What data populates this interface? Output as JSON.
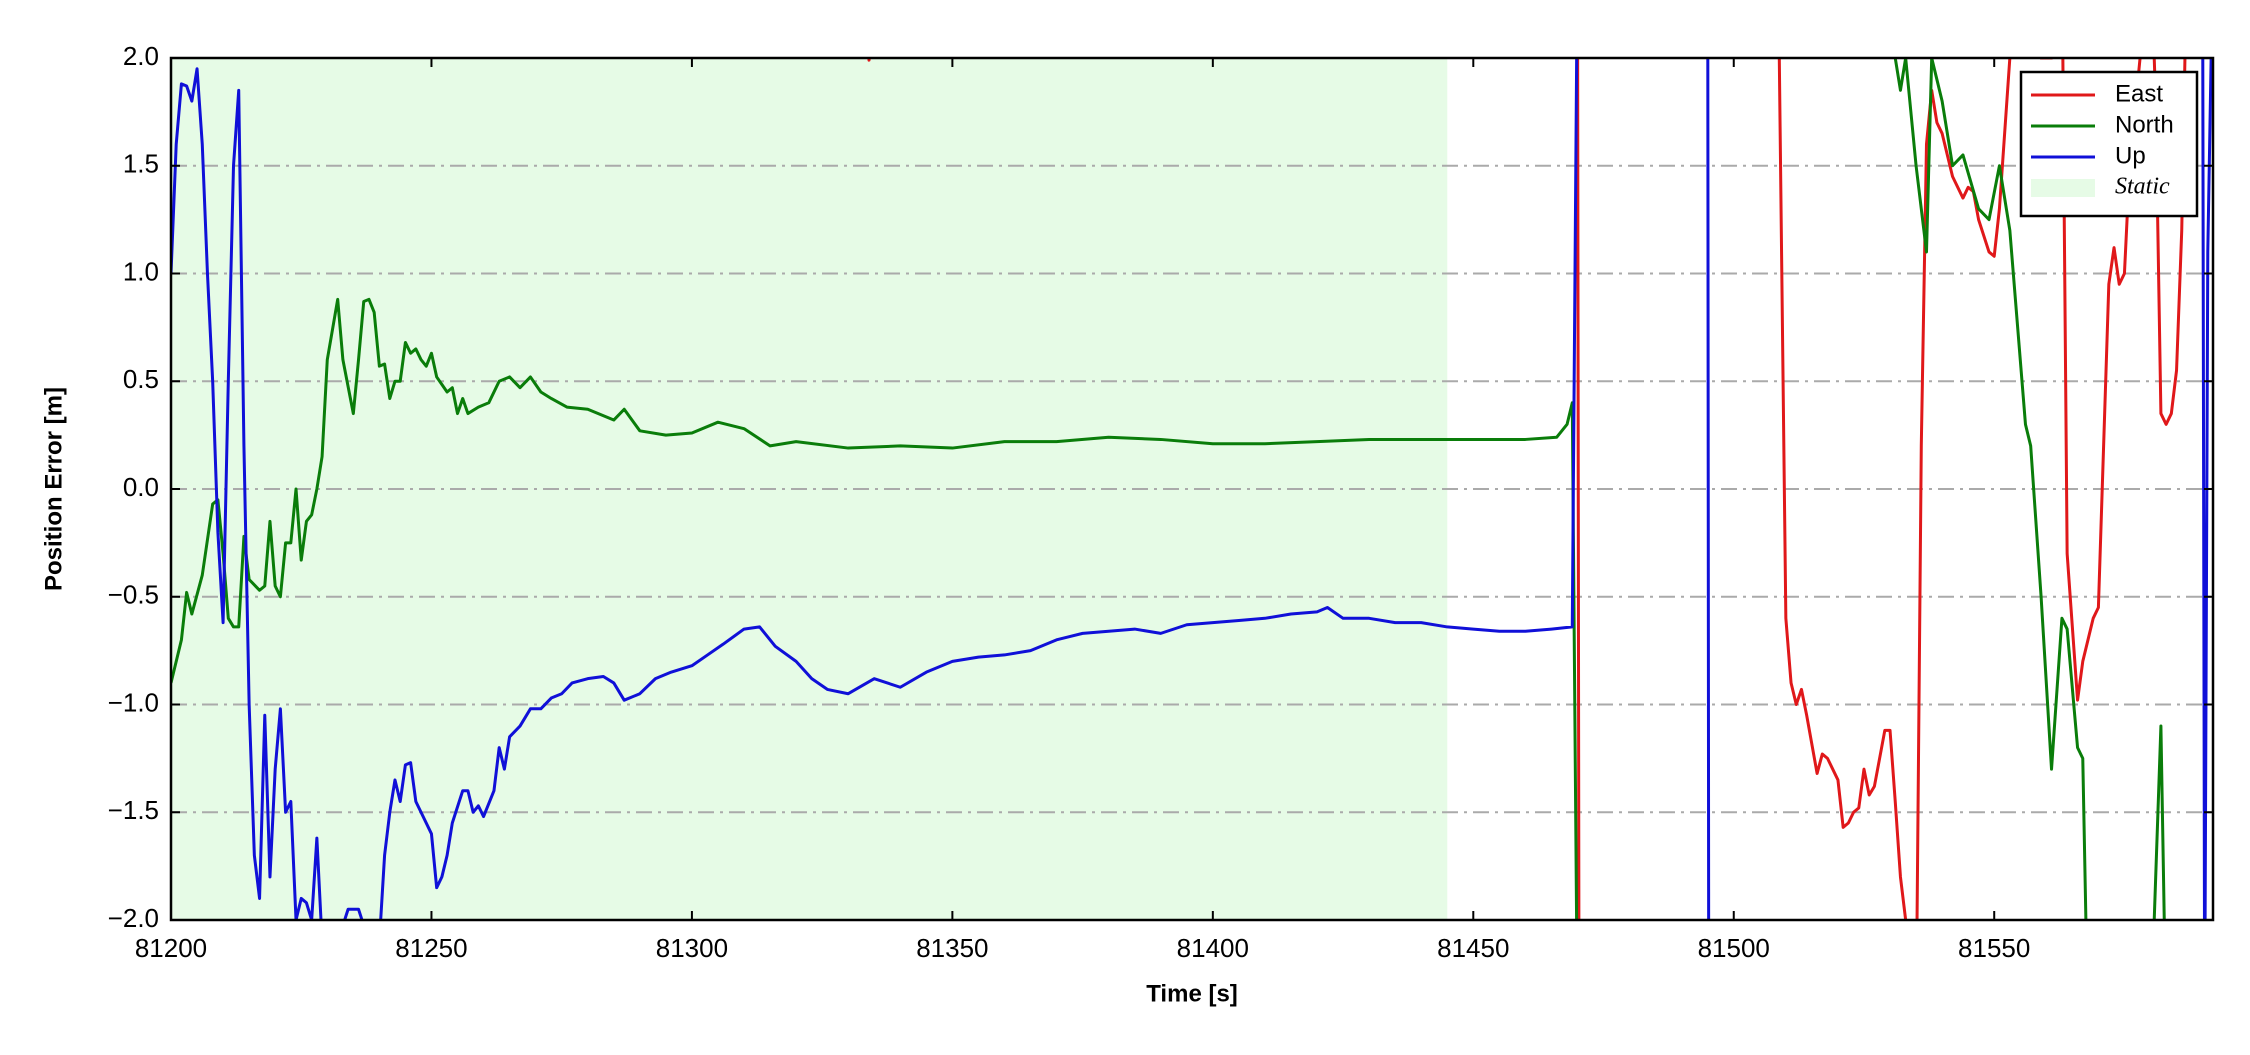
{
  "chart_data": {
    "type": "line",
    "xlabel": "Time [s]",
    "ylabel": "Position Error [m]",
    "xlim": [
      81200,
      81592
    ],
    "ylim": [
      -2,
      2
    ],
    "xticks": [
      81200,
      81250,
      81300,
      81350,
      81400,
      81450,
      81500,
      81550
    ],
    "yticks": [
      {
        "value": -2,
        "label": "−2.0"
      },
      {
        "value": -1.5,
        "label": "−1.5"
      },
      {
        "value": -1,
        "label": "−1.0"
      },
      {
        "value": -0.5,
        "label": "−0.5"
      },
      {
        "value": 0,
        "label": "0.0"
      },
      0.5,
      {
        "value": 1,
        "label": "1.0"
      },
      1.5,
      {
        "value": 2,
        "label": "2.0"
      }
    ],
    "grid": true,
    "legend": "upper right",
    "spans": [
      {
        "name": "Static",
        "color": "#e6fbe6",
        "x": [
          81200,
          81445
        ]
      }
    ],
    "series": [
      {
        "name": "East",
        "color": "#e0181a",
        "x": [
          81333.5,
          81334,
          81334.5,
          81400,
          81470,
          81470.3,
          81490,
          81508.5,
          81510,
          81511,
          81512,
          81513,
          81514,
          81516,
          81517,
          81518,
          81520,
          81521,
          81522,
          81523,
          81524,
          81525,
          81526,
          81527,
          81528,
          81529,
          81530,
          81531,
          81532,
          81533,
          81534,
          81534.5,
          81535,
          81536,
          81537,
          81538,
          81539,
          81540,
          81541,
          81542,
          81544,
          81545,
          81546,
          81547,
          81549,
          81550,
          81551,
          81553,
          81555,
          81557,
          81558,
          81559,
          81561,
          81562,
          81562.5,
          81563,
          81564,
          81566,
          81567,
          81568,
          81569,
          81570,
          81572,
          81573,
          81574,
          81575,
          81576,
          81578,
          81579,
          81579.5,
          81580,
          81581,
          81582,
          81583,
          81584,
          81585,
          81586,
          81587
        ],
        "values": [
          2.1,
          1.99,
          2.1,
          null,
          2.5,
          -2.5,
          null,
          2.5,
          -0.6,
          -0.9,
          -1.0,
          -0.93,
          -1.05,
          -1.32,
          -1.23,
          -1.25,
          -1.35,
          -1.57,
          -1.55,
          -1.5,
          -1.48,
          -1.3,
          -1.42,
          -1.38,
          -1.25,
          -1.12,
          -1.12,
          -1.45,
          -1.8,
          -2.0,
          -2.5,
          null,
          -2.5,
          0.2,
          1.6,
          1.85,
          1.7,
          1.65,
          1.55,
          1.45,
          1.35,
          1.4,
          1.38,
          1.25,
          1.1,
          1.08,
          1.3,
          2.0,
          2.5,
          null,
          2.5,
          2.0,
          2.0,
          2.5,
          null,
          2.5,
          -0.3,
          -0.98,
          -0.8,
          -0.7,
          -0.6,
          -0.55,
          0.95,
          1.12,
          0.95,
          1.0,
          1.5,
          2.0,
          2.5,
          null,
          2.5,
          1.8,
          0.35,
          0.3,
          0.35,
          0.55,
          1.2,
          2.5
        ]
      },
      {
        "name": "North",
        "color": "#0a7d0a",
        "x": [
          81200,
          81202,
          81203,
          81204,
          81206,
          81208,
          81209,
          81210,
          81211,
          81212,
          81213,
          81214,
          81215,
          81217,
          81218,
          81219,
          81220,
          81221,
          81222,
          81223,
          81224,
          81225,
          81226,
          81227,
          81228,
          81229,
          81230,
          81232,
          81233,
          81235,
          81236,
          81237,
          81238,
          81239,
          81240,
          81241,
          81242,
          81243,
          81244,
          81245,
          81246,
          81247,
          81248,
          81249,
          81250,
          81251,
          81253,
          81254,
          81255,
          81256,
          81257,
          81259,
          81261,
          81263,
          81265,
          81267,
          81269,
          81271,
          81273,
          81276,
          81280,
          81285,
          81287,
          81290,
          81295,
          81300,
          81305,
          81310,
          81315,
          81320,
          81330,
          81340,
          81350,
          81360,
          81370,
          81380,
          81390,
          81400,
          81410,
          81420,
          81430,
          81440,
          81450,
          81460,
          81466,
          81468,
          81469,
          81470,
          81500,
          81531,
          81532,
          81533,
          81535,
          81537,
          81538,
          81540,
          81542,
          81544,
          81547,
          81549,
          81551,
          81553,
          81556,
          81557,
          81559,
          81561,
          81563,
          81564,
          81566,
          81567,
          81568,
          81575,
          81580,
          81582,
          81583
        ],
        "values": [
          -0.9,
          -0.7,
          -0.48,
          -0.58,
          -0.4,
          -0.07,
          -0.05,
          -0.3,
          -0.6,
          -0.64,
          -0.64,
          -0.22,
          -0.42,
          -0.47,
          -0.45,
          -0.15,
          -0.45,
          -0.5,
          -0.25,
          -0.25,
          0,
          -0.33,
          -0.15,
          -0.12,
          0,
          0.15,
          0.6,
          0.88,
          0.6,
          0.35,
          0.6,
          0.87,
          0.88,
          0.82,
          0.57,
          0.58,
          0.42,
          0.5,
          0.5,
          0.68,
          0.63,
          0.65,
          0.6,
          0.57,
          0.63,
          0.52,
          0.45,
          0.47,
          0.35,
          0.42,
          0.35,
          0.38,
          0.4,
          0.5,
          0.52,
          0.47,
          0.52,
          0.45,
          0.42,
          0.38,
          0.37,
          0.32,
          0.37,
          0.27,
          0.25,
          0.26,
          0.31,
          0.28,
          0.2,
          0.22,
          0.19,
          0.2,
          0.19,
          0.22,
          0.22,
          0.24,
          0.23,
          0.21,
          0.21,
          0.22,
          0.23,
          0.23,
          0.23,
          0.23,
          0.24,
          0.3,
          0.4,
          -2.5,
          null,
          2.0,
          1.85,
          2.0,
          1.5,
          1.1,
          2.0,
          1.8,
          1.5,
          1.55,
          1.3,
          1.25,
          1.5,
          1.2,
          0.3,
          0.2,
          -0.5,
          -1.3,
          -0.6,
          -0.65,
          -1.2,
          -1.25,
          -2.5,
          null,
          -2.5,
          -1.1,
          -2.5
        ]
      },
      {
        "name": "Up",
        "color": "#1010d8",
        "x": [
          81200,
          81201,
          81202,
          81203,
          81204,
          81205,
          81206,
          81207,
          81208,
          81209,
          81210,
          81211,
          81212,
          81213,
          81214,
          81215,
          81216,
          81217,
          81218,
          81219,
          81220,
          81221,
          81222,
          81223,
          81224,
          81225,
          81226,
          81227,
          81228,
          81229,
          81232,
          81234,
          81236,
          81238,
          81240,
          81241,
          81242,
          81243,
          81244,
          81245,
          81246,
          81247,
          81248,
          81250,
          81251,
          81252,
          81253,
          81254,
          81256,
          81257,
          81258,
          81259,
          81260,
          81262,
          81263,
          81264,
          81265,
          81267,
          81269,
          81271,
          81273,
          81275,
          81277,
          81280,
          81283,
          81285,
          81287,
          81290,
          81293,
          81296,
          81300,
          81303,
          81306,
          81310,
          81313,
          81316,
          81320,
          81323,
          81326,
          81330,
          81335,
          81340,
          81345,
          81350,
          81355,
          81360,
          81365,
          81370,
          81375,
          81380,
          81385,
          81390,
          81395,
          81400,
          81405,
          81410,
          81415,
          81420,
          81422,
          81425,
          81430,
          81435,
          81440,
          81445,
          81450,
          81455,
          81460,
          81465,
          81469,
          81470,
          81480,
          81495,
          81495.2,
          81540,
          81590,
          81590.4,
          81591,
          81592
        ],
        "values": [
          1.0,
          1.6,
          1.88,
          1.87,
          1.8,
          1.95,
          1.6,
          1.0,
          0.5,
          -0.2,
          -0.62,
          0.5,
          1.5,
          1.85,
          0.2,
          -1.0,
          -1.7,
          -1.9,
          -1.05,
          -1.8,
          -1.3,
          -1.02,
          -1.5,
          -1.45,
          -2.0,
          -1.9,
          -1.92,
          -2.0,
          -1.62,
          -2.1,
          -2.1,
          -1.95,
          -1.95,
          -2.1,
          -2.1,
          -1.7,
          -1.5,
          -1.35,
          -1.45,
          -1.28,
          -1.27,
          -1.45,
          -1.5,
          -1.6,
          -1.85,
          -1.8,
          -1.7,
          -1.55,
          -1.4,
          -1.4,
          -1.5,
          -1.47,
          -1.52,
          -1.4,
          -1.2,
          -1.3,
          -1.15,
          -1.1,
          -1.02,
          -1.02,
          -0.97,
          -0.95,
          -0.9,
          -0.88,
          -0.87,
          -0.9,
          -0.98,
          -0.95,
          -0.88,
          -0.85,
          -0.82,
          -0.77,
          -0.72,
          -0.65,
          -0.64,
          -0.73,
          -0.8,
          -0.88,
          -0.93,
          -0.95,
          -0.88,
          -0.92,
          -0.85,
          -0.8,
          -0.78,
          -0.77,
          -0.75,
          -0.7,
          -0.67,
          -0.66,
          -0.65,
          -0.67,
          -0.63,
          -0.62,
          -0.61,
          -0.6,
          -0.58,
          -0.57,
          -0.55,
          -0.6,
          -0.6,
          -0.62,
          -0.62,
          -0.64,
          -0.65,
          -0.66,
          -0.66,
          -0.65,
          -0.64,
          2.5,
          null,
          2.5,
          -2.5,
          null,
          2.5,
          -2.5,
          1.1,
          2.5
        ]
      }
    ]
  }
}
